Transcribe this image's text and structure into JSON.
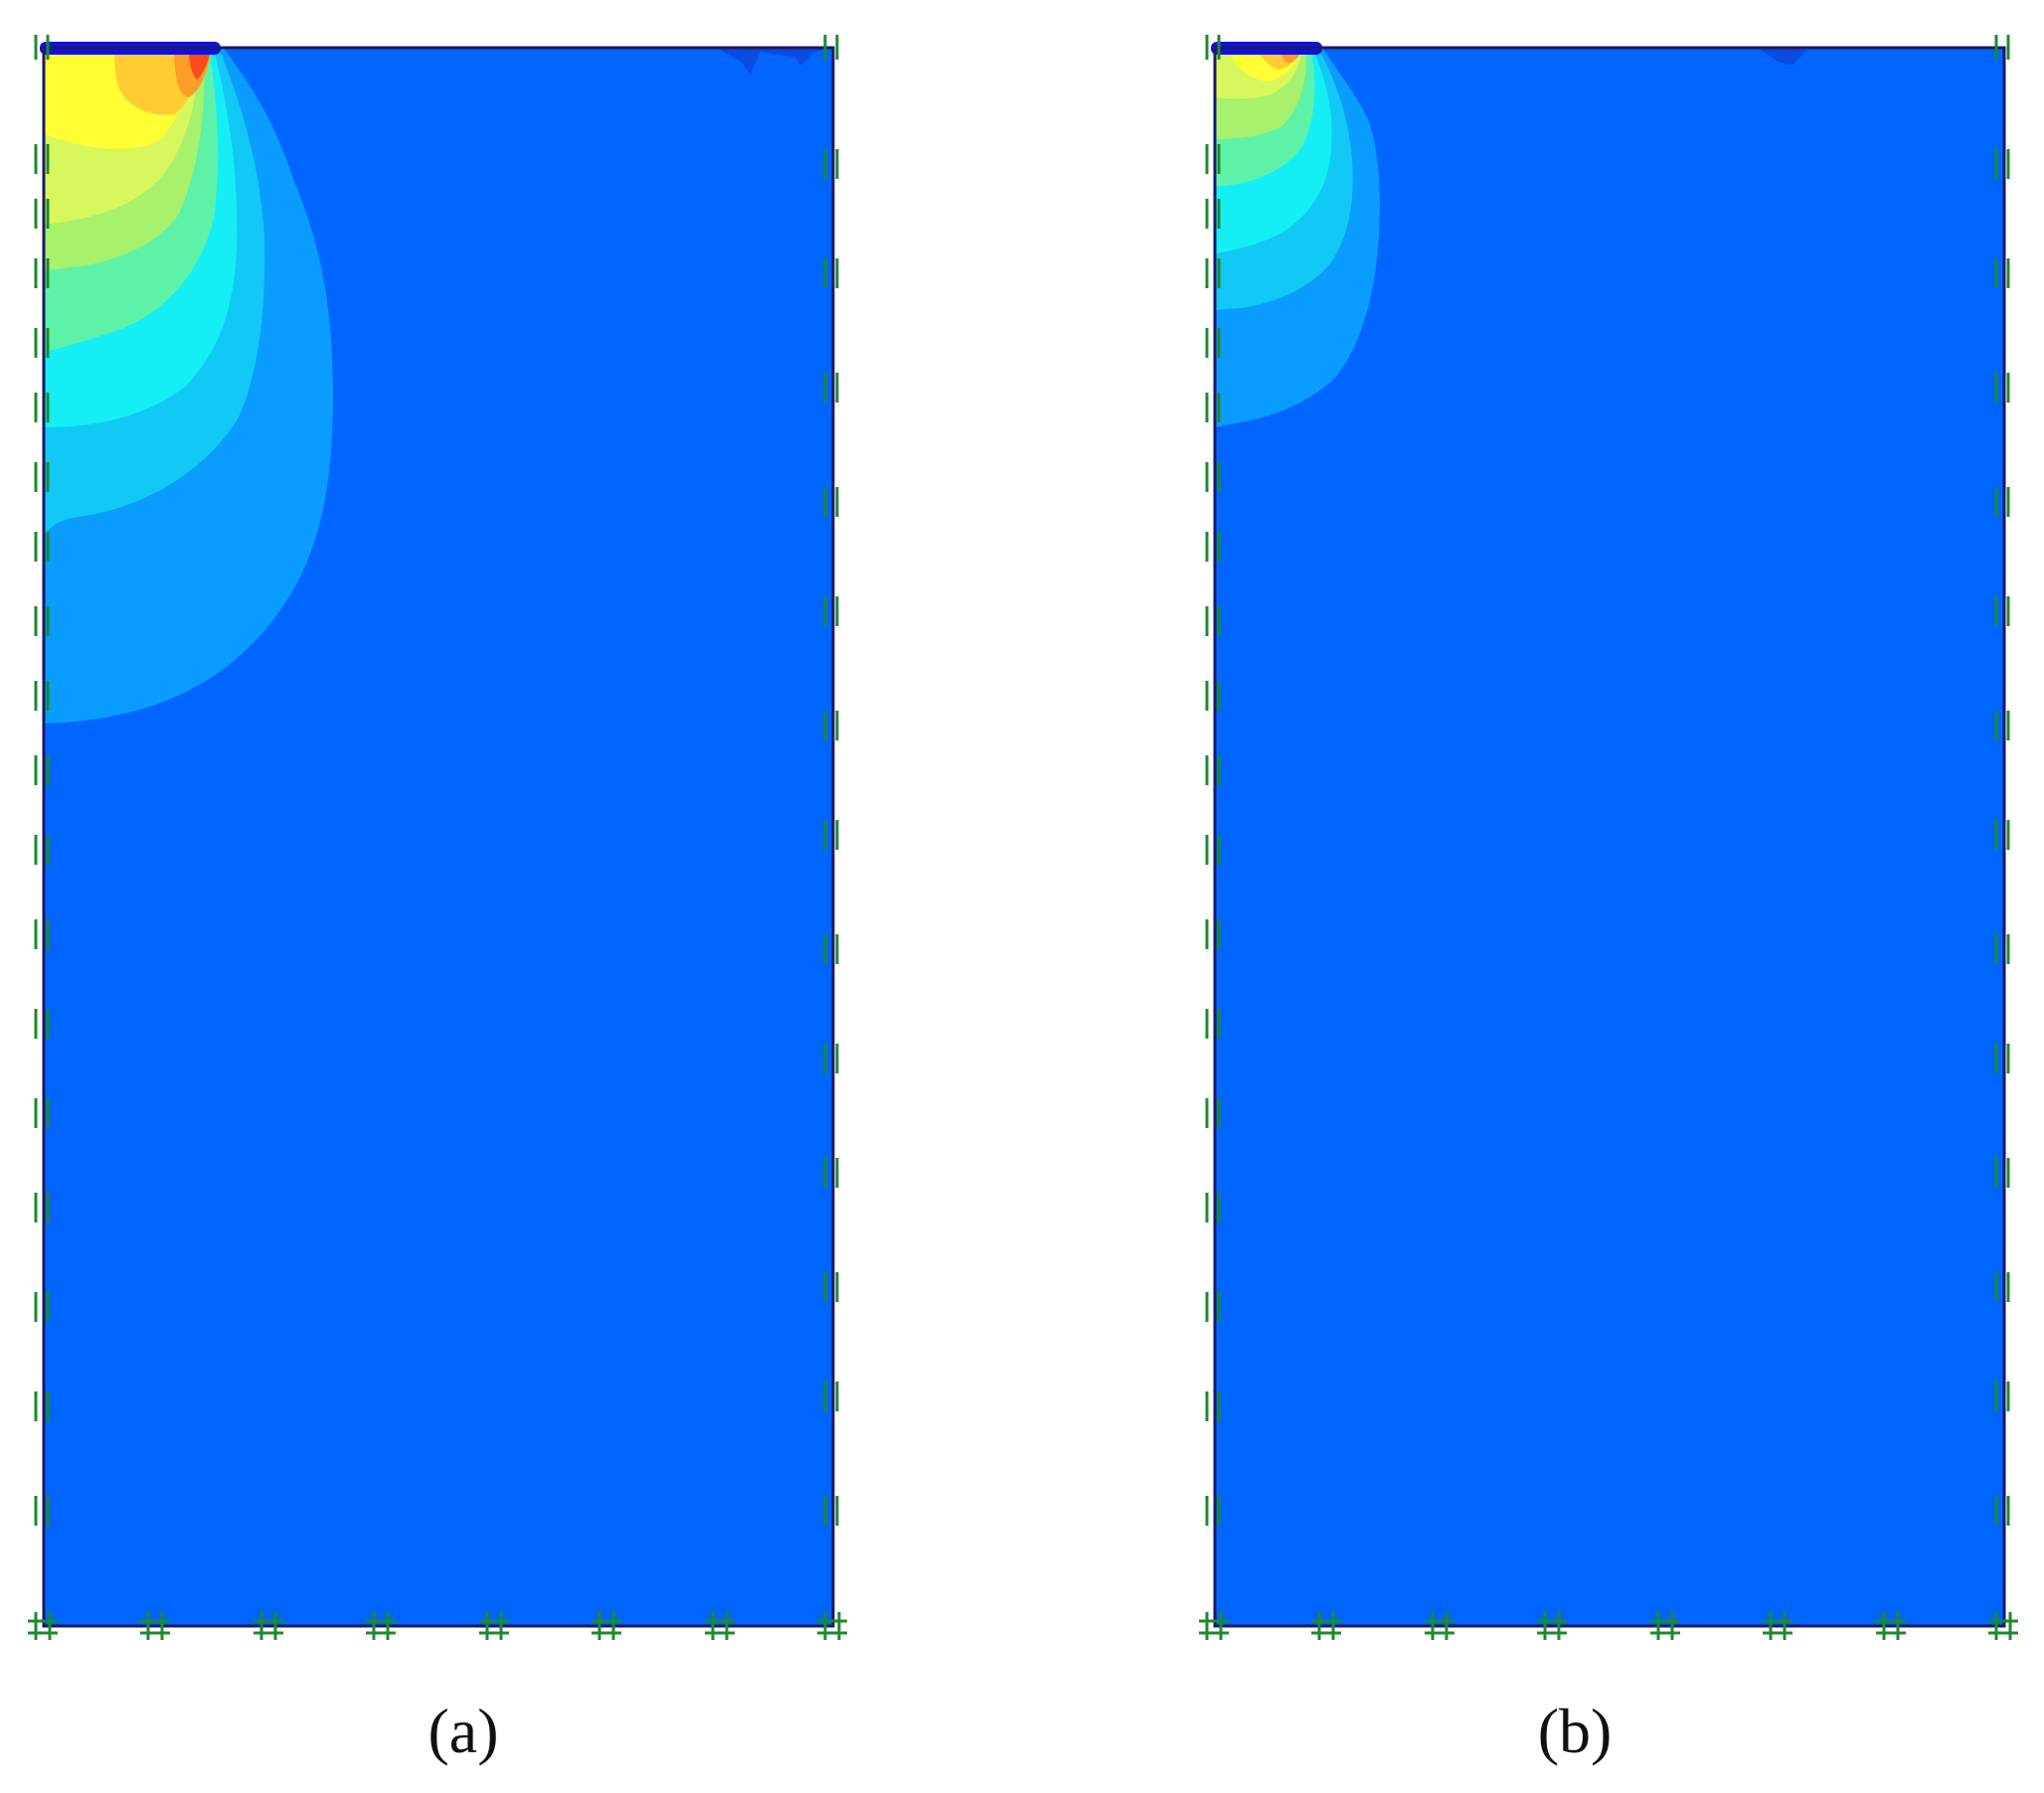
{
  "figure": {
    "panels": [
      {
        "id": "a",
        "caption": "(a)",
        "plume_extent": "large"
      },
      {
        "id": "b",
        "caption": "(b)",
        "plume_extent": "small"
      }
    ]
  },
  "colors": {
    "background_field": "#0066ff",
    "contour_1": "#0b9cff",
    "contour_2": "#12c8f4",
    "contour_3": "#16eef6",
    "contour_4": "#5ef2a8",
    "contour_5": "#a7f16c",
    "contour_6": "#d8f75c",
    "contour_7": "#ffff33",
    "contour_8": "#ffcc33",
    "contour_9": "#ff9c2a",
    "contour_10": "#ff4a1a",
    "footing": "#1111dd",
    "boundary_markers": "#1c8a2e",
    "outline": "#1a1a66"
  }
}
